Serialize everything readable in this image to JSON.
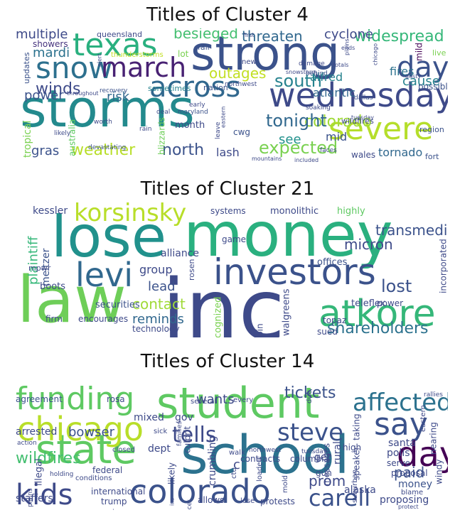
{
  "chart_data": [
    {
      "type": "wordcloud",
      "title": "Titles of Cluster 4",
      "words": [
        {
          "text": "storms",
          "color": "#238a8d"
        },
        {
          "text": "strong",
          "color": "#3b528b"
        },
        {
          "text": "wednesday",
          "color": "#3e4a89"
        },
        {
          "text": "snow",
          "color": "#2d708e"
        },
        {
          "text": "texas",
          "color": "#2ab07f"
        },
        {
          "text": "march",
          "color": "#482173"
        },
        {
          "text": "across",
          "color": "#31688e"
        },
        {
          "text": "severe",
          "color": "#b5de2b"
        },
        {
          "text": "day",
          "color": "#3b528b"
        },
        {
          "text": "winds",
          "color": "#3e4a89"
        },
        {
          "text": "weather",
          "color": "#b8de29"
        },
        {
          "text": "north",
          "color": "#3b528b"
        },
        {
          "text": "south",
          "color": "#26828e"
        },
        {
          "text": "expected",
          "color": "#7ad151"
        },
        {
          "text": "colorado",
          "color": "#a0da39"
        },
        {
          "text": "tonight",
          "color": "#31688e"
        },
        {
          "text": "threaten",
          "color": "#31688e"
        },
        {
          "text": "widespread",
          "color": "#35b779"
        },
        {
          "text": "outages",
          "color": "#c2df23"
        },
        {
          "text": "besieged",
          "color": "#44bf70"
        },
        {
          "text": "cyclone",
          "color": "#3e4a89"
        },
        {
          "text": "power",
          "color": "#3b528b"
        },
        {
          "text": "risk",
          "color": "#31688e"
        },
        {
          "text": "gras",
          "color": "#3b528b"
        },
        {
          "text": "mardi",
          "color": "#2c728e"
        },
        {
          "text": "multiple",
          "color": "#3e4a89"
        },
        {
          "text": "fires",
          "color": "#2c728e"
        },
        {
          "text": "cause",
          "color": "#26828e"
        },
        {
          "text": "atlantic",
          "color": "#31688e"
        },
        {
          "text": "alfred",
          "color": "#26828e"
        },
        {
          "text": "see",
          "color": "#21918c"
        },
        {
          "text": "mid",
          "color": "#3b528b"
        },
        {
          "text": "tornado",
          "color": "#31688e"
        },
        {
          "text": "lash",
          "color": "#3e4a89"
        },
        {
          "text": "tropical",
          "color": "#7ad151"
        },
        {
          "text": "blizzards",
          "color": "#6ece58"
        },
        {
          "text": "queensland",
          "color": "#3e4a89"
        },
        {
          "text": "showers",
          "color": "#46337e"
        },
        {
          "text": "updates",
          "color": "#3b528b"
        },
        {
          "text": "australia",
          "color": "#5ec962"
        },
        {
          "text": "month",
          "color": "#3e4a89"
        },
        {
          "text": "cwg",
          "color": "#3b528b"
        },
        {
          "text": "lot",
          "color": "#7ad151"
        },
        {
          "text": "fall",
          "color": "#3b528b"
        },
        {
          "text": "sometimes",
          "color": "#26828e"
        },
        {
          "text": "nation",
          "color": "#3b528b"
        },
        {
          "text": "possibly",
          "color": "#3b528b"
        },
        {
          "text": "live",
          "color": "#7ad151"
        },
        {
          "text": "region",
          "color": "#3b528b"
        },
        {
          "text": "wales",
          "color": "#3e4a89"
        },
        {
          "text": "fort",
          "color": "#3b528b"
        },
        {
          "text": "wildfires",
          "color": "#3e4a89"
        },
        {
          "text": "mild",
          "color": "#440154"
        },
        {
          "text": "thunderstorms",
          "color": "#c2df23"
        },
        {
          "text": "recovery",
          "color": "#3b528b"
        },
        {
          "text": "devastating",
          "color": "#3b528b"
        },
        {
          "text": "damage",
          "color": "#3e4a89"
        },
        {
          "text": "dallas",
          "color": "#3b528b"
        },
        {
          "text": "soaking",
          "color": "#3e4a89"
        },
        {
          "text": "northwest",
          "color": "#3e4a89"
        },
        {
          "text": "maryland",
          "color": "#3b528b"
        },
        {
          "text": "deal",
          "color": "#3e4a89"
        },
        {
          "text": "early",
          "color": "#3e4a89"
        },
        {
          "text": "faces",
          "color": "#3e4a89"
        },
        {
          "text": "included",
          "color": "#3e4a89"
        },
        {
          "text": "mountains",
          "color": "#3e4a89"
        },
        {
          "text": "new",
          "color": "#3e4a89"
        },
        {
          "text": "first",
          "color": "#3e4a89"
        },
        {
          "text": "behind",
          "color": "#3b528b"
        },
        {
          "text": "snowstorm",
          "color": "#3e4a89"
        },
        {
          "text": "totals",
          "color": "#3e4a89"
        },
        {
          "text": "ends",
          "color": "#3e4a89"
        },
        {
          "text": "gusty",
          "color": "#3e4a89"
        },
        {
          "text": "throughout",
          "color": "#3e4a89"
        },
        {
          "text": "alert",
          "color": "#3e4a89"
        },
        {
          "text": "worth",
          "color": "#3e4a89"
        },
        {
          "text": "likely",
          "color": "#3e4a89"
        },
        {
          "text": "rain",
          "color": "#3e4a89"
        },
        {
          "text": "tuesday",
          "color": "#3e4a89"
        },
        {
          "text": "eastern",
          "color": "#3e4a89"
        },
        {
          "text": "leave",
          "color": "#3e4a89"
        },
        {
          "text": "chicago",
          "color": "#3e4a89"
        },
        {
          "text": "plains",
          "color": "#3e4a89"
        }
      ]
    },
    {
      "type": "wordcloud",
      "title": "Titles of Cluster 21",
      "words": [
        {
          "text": "money",
          "color": "#2ab07f"
        },
        {
          "text": "lose",
          "color": "#21918c"
        },
        {
          "text": "inc",
          "color": "#3e4a89"
        },
        {
          "text": "law",
          "color": "#6ece58"
        },
        {
          "text": "investors",
          "color": "#3b528b"
        },
        {
          "text": "atkore",
          "color": "#35b779"
        },
        {
          "text": "levi",
          "color": "#31688e"
        },
        {
          "text": "korsinsky",
          "color": "#b8de29"
        },
        {
          "text": "shareholders",
          "color": "#2c728e"
        },
        {
          "text": "lost",
          "color": "#3b528b"
        },
        {
          "text": "transmedics",
          "color": "#3b528b"
        },
        {
          "text": "micron",
          "color": "#3e4a89"
        },
        {
          "text": "plaintiff",
          "color": "#35b779"
        },
        {
          "text": "contact",
          "color": "#a0da39"
        },
        {
          "text": "reminds",
          "color": "#31688e"
        },
        {
          "text": "lead",
          "color": "#3b528b"
        },
        {
          "text": "group",
          "color": "#3e4a89"
        },
        {
          "text": "kessler",
          "color": "#3e4a89"
        },
        {
          "text": "meltzer",
          "color": "#3b528b"
        },
        {
          "text": "alliance",
          "color": "#3e4a89"
        },
        {
          "text": "systems",
          "color": "#3e4a89"
        },
        {
          "text": "monolithic",
          "color": "#3e4a89"
        },
        {
          "text": "highly",
          "color": "#5ec962"
        },
        {
          "text": "incorporated",
          "color": "#3e4a89"
        },
        {
          "text": "offices",
          "color": "#3b528b"
        },
        {
          "text": "securities",
          "color": "#3b528b"
        },
        {
          "text": "boots",
          "color": "#3e4a89"
        },
        {
          "text": "firm",
          "color": "#3e4a89"
        },
        {
          "text": "encourages",
          "color": "#3e4a89"
        },
        {
          "text": "technology",
          "color": "#3e4a89"
        },
        {
          "text": "recognized",
          "color": "#7ad151"
        },
        {
          "text": "join",
          "color": "#3e4a89"
        },
        {
          "text": "walgreens",
          "color": "#3e4a89"
        },
        {
          "text": "teleflex",
          "color": "#3e4a89"
        },
        {
          "text": "power",
          "color": "#3e4a89"
        },
        {
          "text": "topaz",
          "color": "#3e4a89"
        },
        {
          "text": "sued",
          "color": "#3e4a89"
        },
        {
          "text": "mpwr",
          "color": "#3e4a89"
        },
        {
          "text": "game",
          "color": "#3e4a89"
        },
        {
          "text": "rosen",
          "color": "#3e4a89"
        }
      ]
    },
    {
      "type": "wordcloud",
      "title": "Titles of Cluster 14",
      "words": [
        {
          "text": "school",
          "color": "#2c728e"
        },
        {
          "text": "student",
          "color": "#5ec962"
        },
        {
          "text": "state",
          "color": "#5ec962"
        },
        {
          "text": "colorado",
          "color": "#3b528b"
        },
        {
          "text": "chicago",
          "color": "#b8de29"
        },
        {
          "text": "funding",
          "color": "#5ec962"
        },
        {
          "text": "affected",
          "color": "#2c728e"
        },
        {
          "text": "say",
          "color": "#3b528b"
        },
        {
          "text": "day",
          "color": "#440154"
        },
        {
          "text": "kids",
          "color": "#3e4a89"
        },
        {
          "text": "steve",
          "color": "#3b528b"
        },
        {
          "text": "tells",
          "color": "#3e4a89"
        },
        {
          "text": "carell",
          "color": "#3b528b"
        },
        {
          "text": "tickets",
          "color": "#3b528b"
        },
        {
          "text": "wildfires",
          "color": "#44bf70"
        },
        {
          "text": "bowser",
          "color": "#3b528b"
        },
        {
          "text": "wants",
          "color": "#3e4a89"
        },
        {
          "text": "paid",
          "color": "#3b528b"
        },
        {
          "text": "prom",
          "color": "#3e4a89"
        },
        {
          "text": "money",
          "color": "#3b528b"
        },
        {
          "text": "mixed",
          "color": "#3e4a89"
        },
        {
          "text": "gov",
          "color": "#3e4a89"
        },
        {
          "text": "arrested",
          "color": "#3e4a89"
        },
        {
          "text": "agreement",
          "color": "#3b528b"
        },
        {
          "text": "rosa",
          "color": "#3e4a89"
        },
        {
          "text": "several",
          "color": "#3e4a89"
        },
        {
          "text": "every",
          "color": "#3e4a89"
        },
        {
          "text": "crumbling",
          "color": "#3e4a89"
        },
        {
          "text": "staffers",
          "color": "#3e4a89"
        },
        {
          "text": "illegal",
          "color": "#3e4a89"
        },
        {
          "text": "international",
          "color": "#3e4a89"
        },
        {
          "text": "trump",
          "color": "#3e4a89"
        },
        {
          "text": "review",
          "color": "#3e4a89"
        },
        {
          "text": "proposing",
          "color": "#3e4a89"
        },
        {
          "text": "alaska",
          "color": "#3e4a89"
        },
        {
          "text": "proposal",
          "color": "#3e4a89"
        },
        {
          "text": "santa",
          "color": "#3e4a89"
        },
        {
          "text": "polis",
          "color": "#3e4a89"
        },
        {
          "text": "serve",
          "color": "#3e4a89"
        },
        {
          "text": "nearing",
          "color": "#3e4a89"
        },
        {
          "text": "speaker",
          "color": "#3e4a89"
        },
        {
          "text": "messages",
          "color": "#3e4a89"
        },
        {
          "text": "get",
          "color": "#3e4a89"
        },
        {
          "text": "high",
          "color": "#3e4a89"
        },
        {
          "text": "gun",
          "color": "#3e4a89"
        },
        {
          "text": "federal",
          "color": "#3e4a89"
        },
        {
          "text": "dept",
          "color": "#3e4a89"
        },
        {
          "text": "likely",
          "color": "#3e4a89"
        },
        {
          "text": "culprit",
          "color": "#3e4a89"
        },
        {
          "text": "allows",
          "color": "#3e4a89"
        },
        {
          "text": "lose",
          "color": "#3e4a89"
        },
        {
          "text": "protests",
          "color": "#3e4a89"
        },
        {
          "text": "conditions",
          "color": "#3e4a89"
        },
        {
          "text": "contracts",
          "color": "#3e4a89"
        },
        {
          "text": "columbia",
          "color": "#3e4a89"
        },
        {
          "text": "closed",
          "color": "#3e4a89"
        },
        {
          "text": "sick",
          "color": "#3e4a89"
        },
        {
          "text": "taking",
          "color": "#3e4a89"
        },
        {
          "text": "rural",
          "color": "#3e4a89"
        },
        {
          "text": "windy",
          "color": "#3e4a89"
        },
        {
          "text": "blame",
          "color": "#3e4a89"
        },
        {
          "text": "suburban",
          "color": "#3e4a89"
        },
        {
          "text": "mold",
          "color": "#3e4a89"
        },
        {
          "text": "loaded",
          "color": "#3e4a89"
        },
        {
          "text": "ctu",
          "color": "#3e4a89"
        },
        {
          "text": "c",
          "color": "#3e4a89"
        },
        {
          "text": "walk",
          "color": "#3e4a89"
        },
        {
          "text": "families",
          "color": "#3e4a89"
        },
        {
          "text": "northwest",
          "color": "#3e4a89"
        },
        {
          "text": "eastern",
          "color": "#3e4a89"
        },
        {
          "text": "holding",
          "color": "#3e4a89"
        },
        {
          "text": "action",
          "color": "#3e4a89"
        },
        {
          "text": "plains",
          "color": "#3e4a89"
        },
        {
          "text": "rallies",
          "color": "#3e4a89"
        },
        {
          "text": "protect",
          "color": "#3e4a89"
        },
        {
          "text": "facet",
          "color": "#3e4a89"
        },
        {
          "text": "ins",
          "color": "#3e4a89"
        },
        {
          "text": "tuesday",
          "color": "#3e4a89"
        },
        {
          "text": "due",
          "color": "#3e4a89"
        }
      ]
    }
  ]
}
